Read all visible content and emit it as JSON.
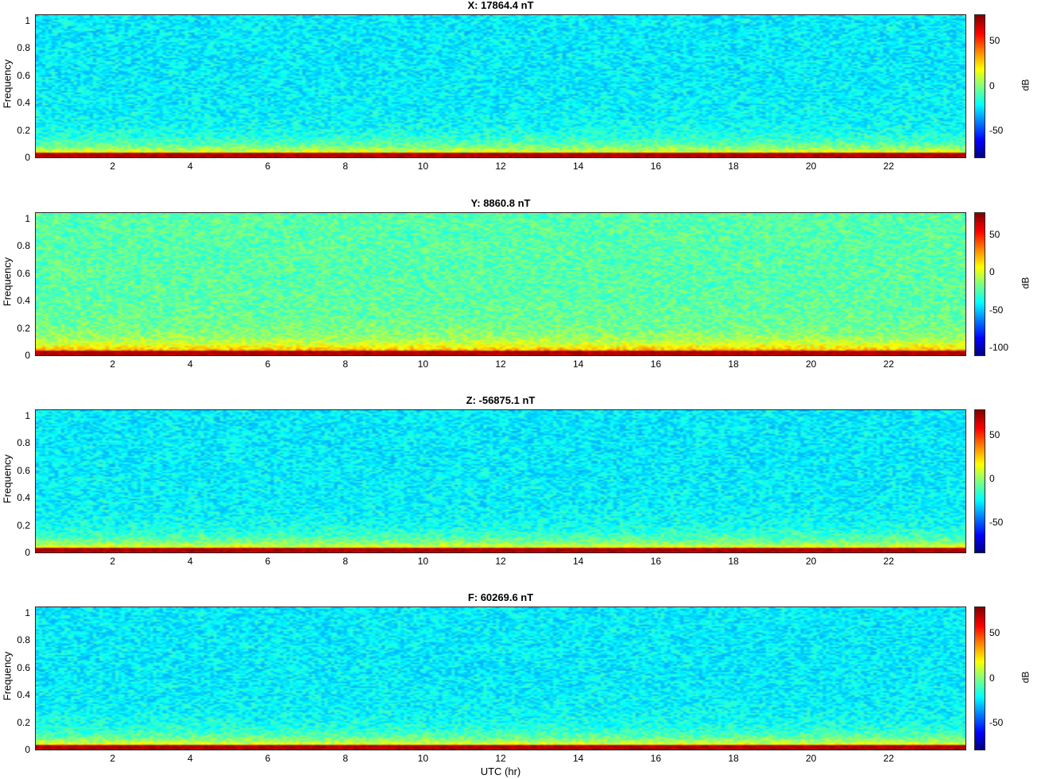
{
  "chart_data": [
    {
      "type": "heatmap",
      "title": "X: 17864.4 nT",
      "ylabel": "Frequency",
      "xlabel": "",
      "x_range": [
        0,
        24
      ],
      "y_range": [
        0,
        1.05
      ],
      "x_ticks": [
        "2",
        "4",
        "6",
        "8",
        "10",
        "12",
        "14",
        "16",
        "18",
        "20",
        "22"
      ],
      "y_ticks": [
        "0",
        "0.2",
        "0.4",
        "0.6",
        "0.8",
        "1"
      ],
      "colorbar_label": "dB",
      "colorbar_range": [
        -80,
        80
      ],
      "colorbar_ticks": [
        "50",
        "0",
        "-50"
      ],
      "colormap": "jet"
    },
    {
      "type": "heatmap",
      "title": "Y: 8860.8 nT",
      "ylabel": "Frequency",
      "xlabel": "",
      "x_range": [
        0,
        24
      ],
      "y_range": [
        0,
        1.05
      ],
      "x_ticks": [
        "2",
        "4",
        "6",
        "8",
        "10",
        "12",
        "14",
        "16",
        "18",
        "20",
        "22"
      ],
      "y_ticks": [
        "0",
        "0.2",
        "0.4",
        "0.6",
        "0.8",
        "1"
      ],
      "colorbar_label": "dB",
      "colorbar_range": [
        -110,
        80
      ],
      "colorbar_ticks": [
        "50",
        "0",
        "-50",
        "-100"
      ],
      "colormap": "jet"
    },
    {
      "type": "heatmap",
      "title": "Z: -56875.1 nT",
      "ylabel": "Frequency",
      "xlabel": "",
      "x_range": [
        0,
        24
      ],
      "y_range": [
        0,
        1.05
      ],
      "x_ticks": [
        "2",
        "4",
        "6",
        "8",
        "10",
        "12",
        "14",
        "16",
        "18",
        "20",
        "22"
      ],
      "y_ticks": [
        "0",
        "0.2",
        "0.4",
        "0.6",
        "0.8",
        "1"
      ],
      "colorbar_label": "",
      "colorbar_range": [
        -85,
        80
      ],
      "colorbar_ticks": [
        "50",
        "0",
        "-50"
      ],
      "colormap": "jet"
    },
    {
      "type": "heatmap",
      "title": "F: 60269.6 nT",
      "ylabel": "Frequency",
      "xlabel": "UTC (hr)",
      "x_range": [
        0,
        24
      ],
      "y_range": [
        0,
        1.05
      ],
      "x_ticks": [
        "2",
        "4",
        "6",
        "8",
        "10",
        "12",
        "14",
        "16",
        "18",
        "20",
        "22"
      ],
      "y_ticks": [
        "0",
        "0.2",
        "0.4",
        "0.6",
        "0.8",
        "1"
      ],
      "colorbar_label": "dB",
      "colorbar_range": [
        -80,
        80
      ],
      "colorbar_ticks": [
        "50",
        "0",
        "-50"
      ],
      "colormap": "jet"
    }
  ]
}
